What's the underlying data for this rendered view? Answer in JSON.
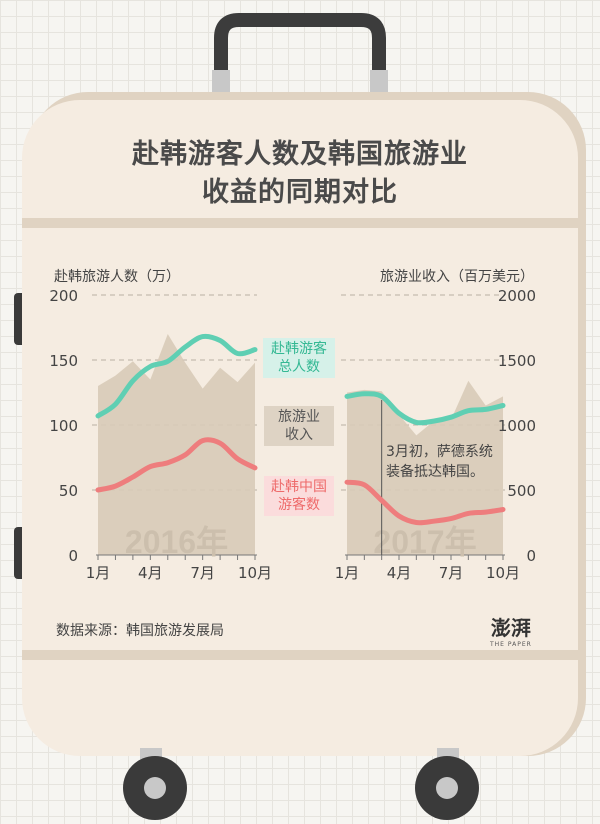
{
  "title_line1": "赴韩游客人数及韩国旅游业",
  "title_line2": "收益的同期对比",
  "source": "数据来源：韩国旅游发展局",
  "logo_text": "澎湃",
  "logo_sub": "THE PAPER",
  "colors": {
    "visitors_total": "#5fcfb3",
    "chinese_visitors": "#ee7d7d",
    "revenue_area": "#d8cbb8",
    "card": "#f5ece1",
    "frame": "#e0d3c2"
  },
  "icons": [
    "suitcase-handle-icon",
    "wheel-icon"
  ],
  "chart_data": [
    {
      "type": "line",
      "watermark": "2016年",
      "ylabel": "赴韩旅游人数（万）",
      "ylim": [
        0,
        200
      ],
      "yticks": [
        "0",
        "50",
        "100",
        "150",
        "200"
      ],
      "xticks": [
        "1月",
        "4月",
        "7月",
        "10月"
      ],
      "x": [
        1,
        2,
        3,
        4,
        5,
        6,
        7,
        8,
        9,
        10
      ],
      "series": [
        {
          "name": "赴韩游客总人数",
          "values": [
            107,
            116,
            134,
            145,
            149,
            160,
            168,
            165,
            155,
            158
          ]
        },
        {
          "name": "赴韩中国游客数",
          "values": [
            50,
            53,
            60,
            68,
            71,
            77,
            88,
            86,
            74,
            67
          ]
        },
        {
          "name": "旅游业收入",
          "area": true,
          "values": [
            1300,
            1380,
            1490,
            1350,
            1700,
            1480,
            1280,
            1440,
            1330,
            1480
          ]
        }
      ],
      "badge_total": [
        "赴韩游客",
        "总人数"
      ],
      "badge_china": [
        "赴韩中国",
        "游客数"
      ],
      "badge_revenue": [
        "旅游业",
        "收入"
      ]
    },
    {
      "type": "line",
      "watermark": "2017年",
      "ylabel": "旅游业收入（百万美元）",
      "ylim": [
        0,
        2000
      ],
      "yticks": [
        "0",
        "500",
        "1000",
        "1500",
        "2000"
      ],
      "xticks": [
        "1月",
        "4月",
        "7月",
        "10月"
      ],
      "x": [
        1,
        2,
        3,
        4,
        5,
        6,
        7,
        8,
        9,
        10
      ],
      "series": [
        {
          "name": "赴韩游客总人数",
          "values": [
            122,
            124,
            122,
            109,
            102,
            103,
            106,
            111,
            112,
            115
          ]
        },
        {
          "name": "赴韩中国游客数",
          "values": [
            56,
            54,
            42,
            30,
            25,
            26,
            28,
            32,
            33,
            35
          ]
        },
        {
          "name": "旅游业收入",
          "area": true,
          "values": [
            1250,
            1270,
            1260,
            1080,
            920,
            1030,
            1040,
            1340,
            1150,
            1220
          ]
        }
      ],
      "annotation": [
        "3月初，萨德系统",
        "装备抵达韩国。"
      ],
      "annotation_month": 3
    }
  ]
}
